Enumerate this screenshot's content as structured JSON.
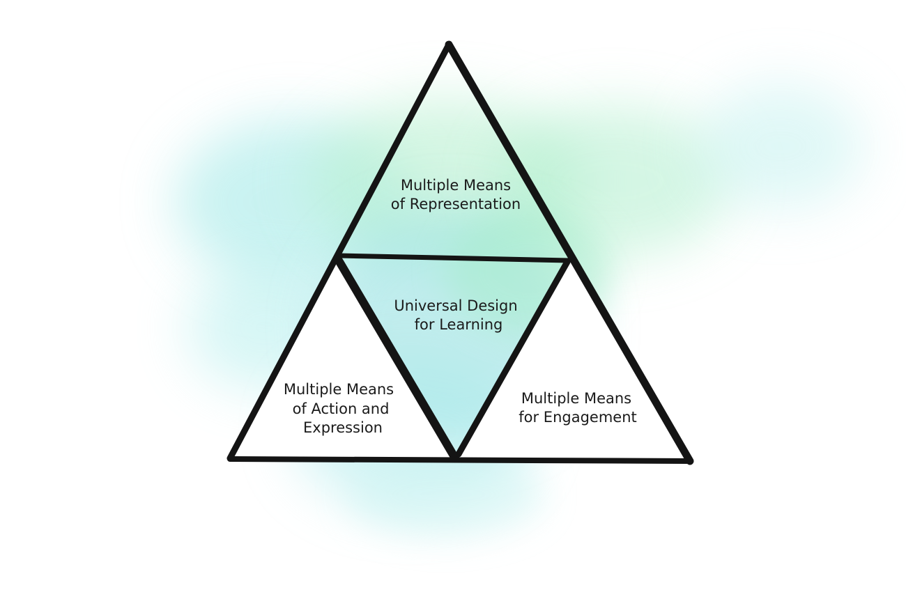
{
  "diagram": {
    "title": "",
    "colors": {
      "stroke": "#141414",
      "text": "#1a1a1a",
      "watercolor_cyan": "#9ee8e6",
      "watercolor_green": "#b8f0d0",
      "watercolor_teal": "#7fd9de"
    },
    "sections": {
      "top": {
        "line1": "Multiple Means",
        "line2": "of Representation"
      },
      "center": {
        "line1": "Universal Design",
        "line2": "for Learning"
      },
      "left": {
        "line1": "Multiple Means",
        "line2": "of Action and",
        "line3": "Expression"
      },
      "right": {
        "line1": "Multiple Means",
        "line2": "for Engagement"
      }
    }
  }
}
